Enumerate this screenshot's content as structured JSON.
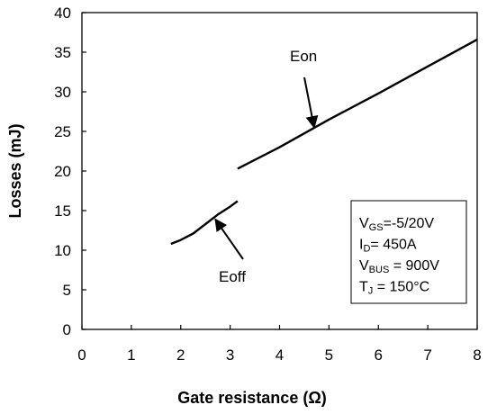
{
  "chart_data": {
    "type": "line",
    "xlabel": "Gate resistance  (Ω)",
    "ylabel": "Losses  (mJ)",
    "xlim": [
      0,
      8
    ],
    "ylim": [
      0,
      40
    ],
    "x_ticks": [
      "0",
      "1",
      "2",
      "3",
      "4",
      "5",
      "6",
      "7",
      "8"
    ],
    "y_ticks": [
      "0",
      "5",
      "10",
      "15",
      "20",
      "25",
      "30",
      "35",
      "40"
    ],
    "grid": false,
    "series": [
      {
        "name": "Eon",
        "x": [
          3.15,
          4.0,
          5.0,
          6.0,
          7.0,
          8.0
        ],
        "y": [
          20.3,
          23.0,
          26.5,
          29.8,
          33.2,
          36.6
        ]
      },
      {
        "name": "Eoff",
        "x": [
          1.8,
          2.0,
          2.25,
          2.5,
          2.75,
          3.0,
          3.15
        ],
        "y": [
          10.8,
          11.3,
          12.1,
          13.3,
          14.5,
          15.5,
          16.2
        ]
      }
    ],
    "annotations": [
      {
        "text": "Eon",
        "points_to": {
          "x": 4.7,
          "y": 25.5
        }
      },
      {
        "text": "Eoff",
        "points_to": {
          "x": 2.7,
          "y": 13.9
        }
      }
    ],
    "conditions": [
      {
        "main": "V",
        "sub": "GS",
        "rest": "=-5/20V"
      },
      {
        "main": "I",
        "sub": "D",
        "rest": "= 450A"
      },
      {
        "main": "V",
        "sub": "BUS",
        "rest": " = 900V"
      },
      {
        "main": "T",
        "sub": "J",
        "rest": " = 150°C"
      }
    ]
  }
}
